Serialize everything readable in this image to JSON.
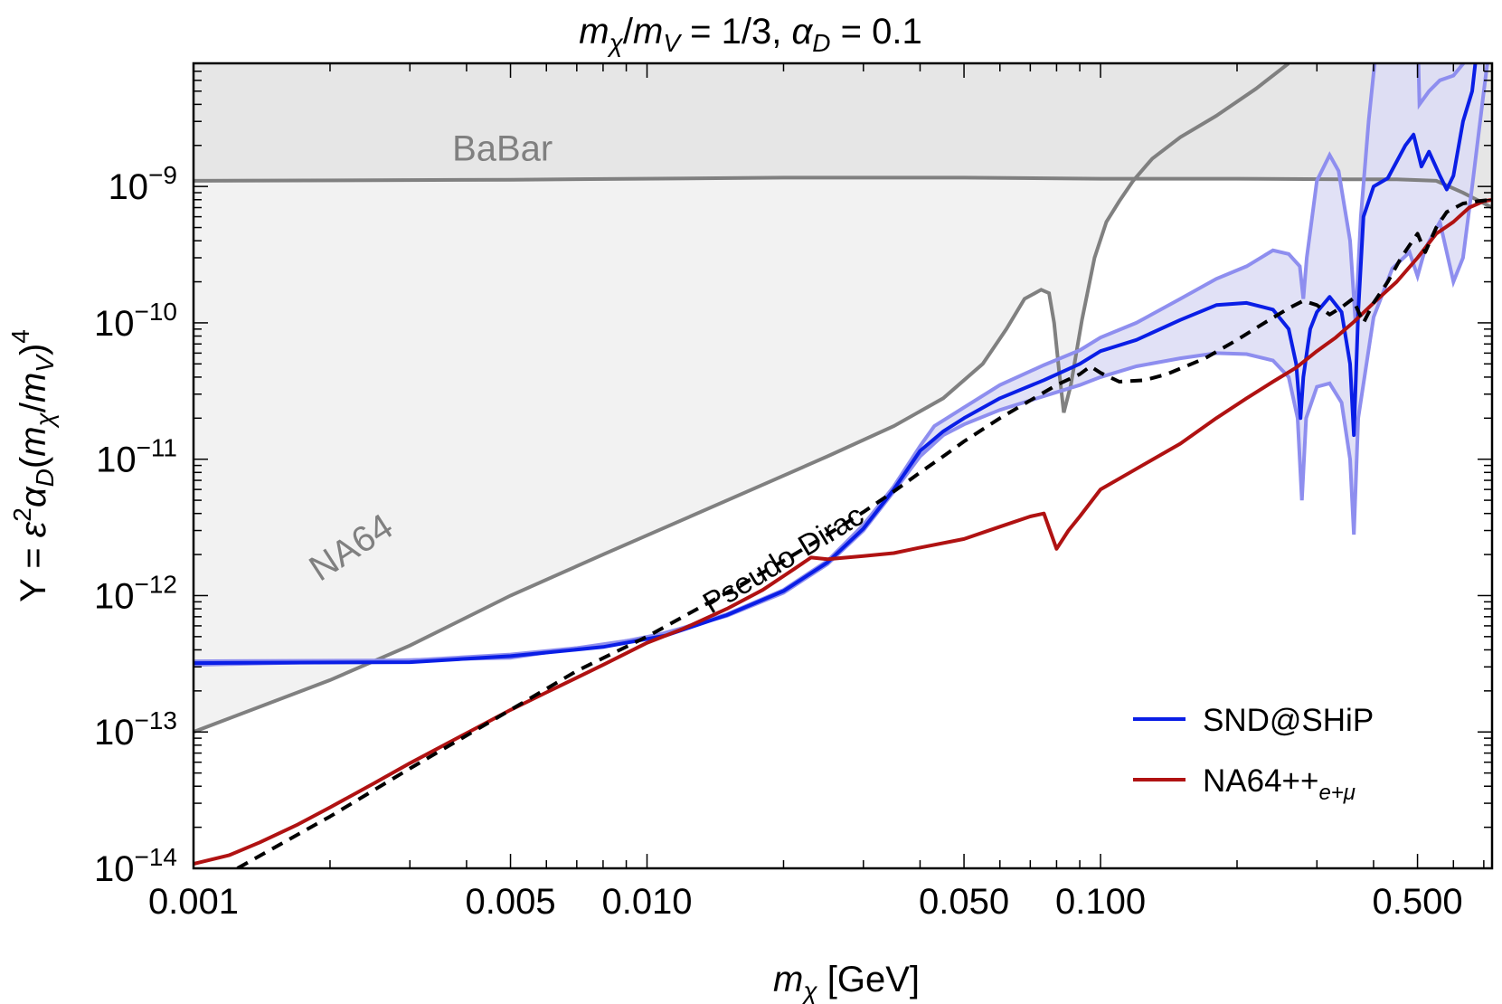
{
  "chart_data": {
    "type": "line",
    "title": "m_χ/m_V = 1/3, α_D = 0.1",
    "title_parts": {
      "m": "m",
      "chi": "χ",
      "slash": "/",
      "V": "V",
      "ratio_text": " = 1/3, ",
      "alpha": "α",
      "D": "D",
      "alpha_text": " = 0.1"
    },
    "xlabel": "m_χ [GeV]",
    "xlabel_parts": {
      "m": "m",
      "chi": "χ",
      "unit": " [GeV]"
    },
    "ylabel": "Y = ε²α_D(m_χ/m_V)⁴",
    "ylabel_parts": {
      "lead": "Y = ",
      "eps": "ε",
      "two": "2",
      "alpha": "α",
      "D": "D",
      "open": "(",
      "m": "m",
      "chi": "χ",
      "slash": "/",
      "V": "V",
      "close": ")",
      "four": "4"
    },
    "x_scale": "log",
    "y_scale": "log",
    "xlim": [
      0.001,
      0.73
    ],
    "ylim": [
      1e-14,
      8e-09
    ],
    "x_ticks": [
      {
        "value": 0.001,
        "label": "0.001"
      },
      {
        "value": 0.005,
        "label": "0.005"
      },
      {
        "value": 0.01,
        "label": "0.010"
      },
      {
        "value": 0.05,
        "label": "0.050"
      },
      {
        "value": 0.1,
        "label": "0.100"
      },
      {
        "value": 0.5,
        "label": "0.500"
      }
    ],
    "y_ticks": [
      {
        "value": 1e-14,
        "base": "10",
        "exp": "−14"
      },
      {
        "value": 1e-13,
        "base": "10",
        "exp": "−13"
      },
      {
        "value": 1e-12,
        "base": "10",
        "exp": "−12"
      },
      {
        "value": 1e-11,
        "base": "10",
        "exp": "−11"
      },
      {
        "value": 1e-10,
        "base": "10",
        "exp": "−10"
      },
      {
        "value": 1e-09,
        "base": "10",
        "exp": "−9"
      }
    ],
    "grid": false,
    "legend_position": "bottom-right",
    "regions": [
      {
        "name": "BaBar",
        "color": "#e6e6e6",
        "line_color": "#808080",
        "label_at": {
          "x": 0.0048,
          "y": 1.55e-09
        },
        "boundary": [
          [
            0.001,
            1.1e-09
          ],
          [
            0.005,
            1.12e-09
          ],
          [
            0.02,
            1.16e-09
          ],
          [
            0.05,
            1.16e-09
          ],
          [
            0.1,
            1.14e-09
          ],
          [
            0.2,
            1.14e-09
          ],
          [
            0.35,
            1.13e-09
          ],
          [
            0.45,
            1.13e-09
          ],
          [
            0.55,
            1.1e-09
          ],
          [
            0.63,
            9e-10
          ],
          [
            0.73,
            7e-10
          ]
        ]
      },
      {
        "name": "NA64",
        "color": "#f2f2f2",
        "line_color": "#808080",
        "label_at": {
          "x": 0.0023,
          "y": 1.9e-12
        },
        "label_rotate": -33,
        "boundary": [
          [
            0.001,
            1e-13
          ],
          [
            0.002,
            2.4e-13
          ],
          [
            0.003,
            4.3e-13
          ],
          [
            0.005,
            1e-12
          ],
          [
            0.008,
            2e-12
          ],
          [
            0.012,
            3.6e-12
          ],
          [
            0.018,
            6.5e-12
          ],
          [
            0.025,
            1.05e-11
          ],
          [
            0.035,
            1.75e-11
          ],
          [
            0.045,
            2.8e-11
          ],
          [
            0.055,
            5e-11
          ],
          [
            0.062,
            9e-11
          ],
          [
            0.068,
            1.5e-10
          ],
          [
            0.074,
            1.75e-10
          ],
          [
            0.077,
            1.65e-10
          ],
          [
            0.079,
            1e-10
          ],
          [
            0.081,
            4.5e-11
          ],
          [
            0.083,
            2.2e-11
          ],
          [
            0.086,
            3.5e-11
          ],
          [
            0.091,
            1.05e-10
          ],
          [
            0.097,
            3e-10
          ],
          [
            0.103,
            5.5e-10
          ],
          [
            0.11,
            7.8e-10
          ],
          [
            0.118,
            1.1e-09
          ],
          [
            0.13,
            1.6e-09
          ],
          [
            0.15,
            2.3e-09
          ],
          [
            0.18,
            3.3e-09
          ],
          [
            0.22,
            5.2e-09
          ],
          [
            0.26,
            8e-09
          ]
        ]
      }
    ],
    "band": {
      "name": "SND@SHiP uncertainty",
      "color": "#dcdcf5",
      "line_color": "#8e8eef",
      "upper": [
        [
          0.001,
          3.3e-13
        ],
        [
          0.003,
          3.35e-13
        ],
        [
          0.005,
          3.7e-13
        ],
        [
          0.008,
          4.3e-13
        ],
        [
          0.011,
          5.3e-13
        ],
        [
          0.015,
          7.3e-13
        ],
        [
          0.02,
          1.1e-12
        ],
        [
          0.025,
          1.8e-12
        ],
        [
          0.03,
          3.3e-12
        ],
        [
          0.035,
          6.3e-12
        ],
        [
          0.04,
          1.25e-11
        ],
        [
          0.043,
          1.75e-11
        ],
        [
          0.05,
          2.4e-11
        ],
        [
          0.06,
          3.5e-11
        ],
        [
          0.075,
          4.9e-11
        ],
        [
          0.09,
          6.3e-11
        ],
        [
          0.1,
          7.8e-11
        ],
        [
          0.12,
          1e-10
        ],
        [
          0.15,
          1.5e-10
        ],
        [
          0.18,
          2.1e-10
        ],
        [
          0.21,
          2.6e-10
        ],
        [
          0.24,
          3.4e-10
        ],
        [
          0.26,
          3.2e-10
        ],
        [
          0.275,
          2.6e-10
        ],
        [
          0.28,
          1.5e-10
        ],
        [
          0.285,
          3e-10
        ],
        [
          0.3,
          1.1e-09
        ],
        [
          0.32,
          1.7e-09
        ],
        [
          0.335,
          1.3e-09
        ],
        [
          0.355,
          4e-10
        ],
        [
          0.365,
          1e-10
        ],
        [
          0.375,
          6e-10
        ],
        [
          0.39,
          3e-09
        ],
        [
          0.41,
          1.5e-08
        ]
      ],
      "upper2": [
        [
          0.5,
          1.5e-08
        ],
        [
          0.505,
          4e-09
        ],
        [
          0.53,
          5e-09
        ],
        [
          0.56,
          6e-09
        ],
        [
          0.6,
          6.5e-09
        ],
        [
          0.65,
          9e-09
        ],
        [
          0.68,
          1.5e-08
        ]
      ],
      "lower": [
        [
          0.001,
          3.1e-13
        ],
        [
          0.005,
          3.5e-13
        ],
        [
          0.01,
          4.9e-13
        ],
        [
          0.015,
          7.1e-13
        ],
        [
          0.02,
          1.05e-12
        ],
        [
          0.025,
          1.7e-12
        ],
        [
          0.03,
          3e-12
        ],
        [
          0.035,
          5.8e-12
        ],
        [
          0.04,
          1.05e-11
        ],
        [
          0.045,
          1.5e-11
        ],
        [
          0.05,
          1.8e-11
        ],
        [
          0.06,
          2.3e-11
        ],
        [
          0.075,
          2.9e-11
        ],
        [
          0.09,
          3.5e-11
        ],
        [
          0.1,
          4e-11
        ],
        [
          0.12,
          4.8e-11
        ],
        [
          0.15,
          5.5e-11
        ],
        [
          0.18,
          6e-11
        ],
        [
          0.21,
          5.9e-11
        ],
        [
          0.24,
          5.3e-11
        ],
        [
          0.26,
          4e-11
        ],
        [
          0.272,
          2e-11
        ],
        [
          0.278,
          5e-12
        ],
        [
          0.284,
          2e-11
        ],
        [
          0.3,
          3.4e-11
        ],
        [
          0.32,
          3.6e-11
        ],
        [
          0.34,
          2.6e-11
        ],
        [
          0.355,
          1e-11
        ],
        [
          0.362,
          2.8e-12
        ],
        [
          0.37,
          2e-11
        ],
        [
          0.4,
          1.1e-10
        ],
        [
          0.44,
          2.5e-10
        ],
        [
          0.48,
          3.3e-10
        ],
        [
          0.5,
          2.2e-10
        ],
        [
          0.52,
          3.5e-10
        ],
        [
          0.56,
          5.5e-10
        ],
        [
          0.6,
          2e-10
        ],
        [
          0.63,
          3e-10
        ],
        [
          0.66,
          1e-09
        ],
        [
          0.7,
          5e-09
        ],
        [
          0.73,
          1.5e-08
        ]
      ]
    },
    "series": [
      {
        "name": "SND@SHiP",
        "color": "#0a1ee6",
        "points": [
          [
            0.001,
            3.2e-13
          ],
          [
            0.003,
            3.25e-13
          ],
          [
            0.005,
            3.6e-13
          ],
          [
            0.008,
            4.2e-13
          ],
          [
            0.011,
            5.1e-13
          ],
          [
            0.015,
            7.2e-13
          ],
          [
            0.02,
            1.08e-12
          ],
          [
            0.025,
            1.75e-12
          ],
          [
            0.03,
            3.1e-12
          ],
          [
            0.035,
            6e-12
          ],
          [
            0.04,
            1.15e-11
          ],
          [
            0.045,
            1.6e-11
          ],
          [
            0.05,
            2e-11
          ],
          [
            0.06,
            2.8e-11
          ],
          [
            0.075,
            3.8e-11
          ],
          [
            0.09,
            5e-11
          ],
          [
            0.1,
            6.2e-11
          ],
          [
            0.12,
            7.5e-11
          ],
          [
            0.15,
            1.05e-10
          ],
          [
            0.18,
            1.35e-10
          ],
          [
            0.21,
            1.4e-10
          ],
          [
            0.24,
            1.25e-10
          ],
          [
            0.26,
            9e-11
          ],
          [
            0.27,
            5e-11
          ],
          [
            0.276,
            2e-11
          ],
          [
            0.28,
            4e-11
          ],
          [
            0.29,
            9e-11
          ],
          [
            0.3,
            1.2e-10
          ],
          [
            0.32,
            1.55e-10
          ],
          [
            0.34,
            1.2e-10
          ],
          [
            0.355,
            5e-11
          ],
          [
            0.362,
            1.5e-11
          ],
          [
            0.37,
            1.2e-10
          ],
          [
            0.38,
            6e-10
          ],
          [
            0.4,
            1e-09
          ],
          [
            0.43,
            1.15e-09
          ],
          [
            0.47,
            2e-09
          ],
          [
            0.49,
            2.4e-09
          ],
          [
            0.51,
            1.4e-09
          ],
          [
            0.53,
            1.8e-09
          ],
          [
            0.56,
            1.2e-09
          ],
          [
            0.58,
            9.5e-10
          ],
          [
            0.6,
            1.2e-09
          ],
          [
            0.63,
            3e-09
          ],
          [
            0.66,
            5e-09
          ],
          [
            0.68,
            1.2e-08
          ]
        ]
      },
      {
        "name": "NA64++_e+μ",
        "color": "#b01212",
        "points": [
          [
            0.001,
            1.08e-14
          ],
          [
            0.0012,
            1.25e-14
          ],
          [
            0.0014,
            1.55e-14
          ],
          [
            0.0017,
            2.1e-14
          ],
          [
            0.002,
            2.8e-14
          ],
          [
            0.0025,
            4.2e-14
          ],
          [
            0.003,
            5.9e-14
          ],
          [
            0.004,
            9.8e-14
          ],
          [
            0.005,
            1.45e-13
          ],
          [
            0.006,
            1.95e-13
          ],
          [
            0.008,
            3.1e-13
          ],
          [
            0.01,
            4.5e-13
          ],
          [
            0.012,
            5.7e-13
          ],
          [
            0.015,
            8e-13
          ],
          [
            0.018,
            1.1e-12
          ],
          [
            0.021,
            1.55e-12
          ],
          [
            0.023,
            1.9e-12
          ],
          [
            0.025,
            1.85e-12
          ],
          [
            0.03,
            1.95e-12
          ],
          [
            0.035,
            2.05e-12
          ],
          [
            0.04,
            2.25e-12
          ],
          [
            0.05,
            2.6e-12
          ],
          [
            0.06,
            3.2e-12
          ],
          [
            0.07,
            3.8e-12
          ],
          [
            0.075,
            4e-12
          ],
          [
            0.08,
            2.2e-12
          ],
          [
            0.085,
            3e-12
          ],
          [
            0.09,
            3.8e-12
          ],
          [
            0.1,
            6e-12
          ],
          [
            0.12,
            8.5e-12
          ],
          [
            0.15,
            1.3e-11
          ],
          [
            0.18,
            2e-11
          ],
          [
            0.21,
            2.8e-11
          ],
          [
            0.24,
            3.7e-11
          ],
          [
            0.27,
            4.7e-11
          ],
          [
            0.3,
            6.2e-11
          ],
          [
            0.33,
            7.8e-11
          ],
          [
            0.36,
            1e-10
          ],
          [
            0.4,
            1.4e-10
          ],
          [
            0.45,
            2e-10
          ],
          [
            0.5,
            3e-10
          ],
          [
            0.55,
            4.5e-10
          ],
          [
            0.6,
            5.5e-10
          ],
          [
            0.65,
            7e-10
          ],
          [
            0.7,
            7.8e-10
          ],
          [
            0.73,
            8e-10
          ]
        ]
      },
      {
        "name": "Pseudo-Dirac",
        "color": "#000000",
        "dashed": true,
        "label_at": {
          "x": 0.0205,
          "y": 1.6e-12
        },
        "label_rotate": -31,
        "points": [
          [
            0.00125,
            1e-14
          ],
          [
            0.002,
            2.4e-14
          ],
          [
            0.003,
            5.4e-14
          ],
          [
            0.005,
            1.45e-13
          ],
          [
            0.007,
            2.8e-13
          ],
          [
            0.01,
            5e-13
          ],
          [
            0.015,
            1.05e-12
          ],
          [
            0.02,
            1.8e-12
          ],
          [
            0.025,
            2.8e-12
          ],
          [
            0.03,
            4.1e-12
          ],
          [
            0.035,
            5.8e-12
          ],
          [
            0.04,
            8e-12
          ],
          [
            0.045,
            1.05e-11
          ],
          [
            0.05,
            1.35e-11
          ],
          [
            0.06,
            2e-11
          ],
          [
            0.07,
            2.7e-11
          ],
          [
            0.08,
            3.5e-11
          ],
          [
            0.09,
            4.2e-11
          ],
          [
            0.095,
            4.8e-11
          ],
          [
            0.1,
            4.3e-11
          ],
          [
            0.11,
            3.7e-11
          ],
          [
            0.125,
            3.8e-11
          ],
          [
            0.14,
            4.2e-11
          ],
          [
            0.17,
            5.5e-11
          ],
          [
            0.2,
            7.5e-11
          ],
          [
            0.23,
            1e-10
          ],
          [
            0.26,
            1.28e-10
          ],
          [
            0.28,
            1.45e-10
          ],
          [
            0.3,
            1.35e-10
          ],
          [
            0.32,
            1.15e-10
          ],
          [
            0.34,
            1.3e-10
          ],
          [
            0.36,
            1.5e-10
          ],
          [
            0.38,
            1e-10
          ],
          [
            0.4,
            1.4e-10
          ],
          [
            0.43,
            2e-10
          ],
          [
            0.46,
            3e-10
          ],
          [
            0.48,
            3.7e-10
          ],
          [
            0.5,
            4.5e-10
          ],
          [
            0.52,
            3.3e-10
          ],
          [
            0.55,
            5e-10
          ],
          [
            0.58,
            6.5e-10
          ],
          [
            0.63,
            7.5e-10
          ],
          [
            0.68,
            7.8e-10
          ],
          [
            0.73,
            8e-10
          ]
        ]
      }
    ],
    "legend": [
      {
        "label": "SND@SHiP",
        "color": "#0a1ee6"
      },
      {
        "label_main": "NA64++",
        "label_sub": "e+μ",
        "color": "#b01212"
      }
    ]
  }
}
